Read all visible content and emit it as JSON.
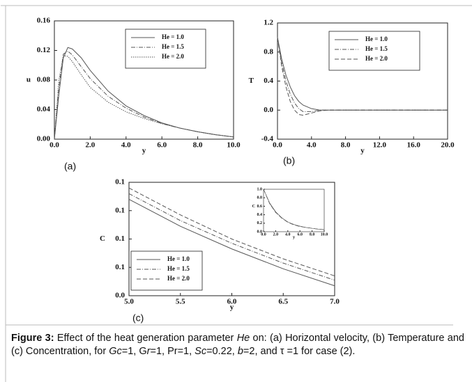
{
  "chart_data": [
    {
      "type": "line",
      "panel_label": "(a)",
      "xlabel": "y",
      "ylabel": "u",
      "x": [
        0,
        0.25,
        0.5,
        0.75,
        1,
        1.5,
        2,
        3,
        4,
        5,
        6,
        7,
        8,
        9,
        10
      ],
      "series": [
        {
          "name": "He = 1.0",
          "color": "#555",
          "dash": "solid",
          "values": [
            0,
            0.06,
            0.11,
            0.124,
            0.122,
            0.11,
            0.093,
            0.065,
            0.045,
            0.032,
            0.022,
            0.015,
            0.01,
            0.006,
            0.003
          ]
        },
        {
          "name": "He = 1.5",
          "color": "#555",
          "dash": "dashdot",
          "values": [
            0,
            0.07,
            0.115,
            0.119,
            0.114,
            0.098,
            0.082,
            0.058,
            0.042,
            0.03,
            0.021,
            0.015,
            0.01,
            0.006,
            0.003
          ]
        },
        {
          "name": "He = 2.0",
          "color": "#555",
          "dash": "dotted",
          "values": [
            0,
            0.08,
            0.113,
            0.112,
            0.105,
            0.087,
            0.07,
            0.05,
            0.037,
            0.028,
            0.021,
            0.015,
            0.01,
            0.006,
            0.003
          ]
        }
      ],
      "xlim": [
        0,
        10
      ],
      "ylim": [
        0,
        0.16
      ],
      "xticks": [
        {
          "value": 0,
          "label": "0.0"
        },
        {
          "value": 2,
          "label": "2.0"
        },
        {
          "value": 4,
          "label": "4.0"
        },
        {
          "value": 6,
          "label": "6.0"
        },
        {
          "value": 8,
          "label": "8.0"
        },
        {
          "value": 10,
          "label": "10.0"
        }
      ],
      "yticks": [
        {
          "value": 0,
          "label": "0.00"
        },
        0.04,
        0.08,
        0.12,
        0.16
      ],
      "legend": "upper right"
    },
    {
      "type": "line",
      "panel_label": "(b)",
      "xlabel": "y",
      "ylabel": "T",
      "x": [
        0,
        0.5,
        1,
        1.5,
        2,
        2.5,
        3,
        4,
        5,
        6,
        8,
        12,
        16,
        20
      ],
      "series": [
        {
          "name": "He = 1.0",
          "color": "#555",
          "dash": "solid",
          "values": [
            1,
            0.7,
            0.48,
            0.32,
            0.2,
            0.12,
            0.07,
            0.02,
            0,
            0,
            0,
            0,
            0,
            0
          ]
        },
        {
          "name": "He = 1.5",
          "color": "#555",
          "dash": "dashdot",
          "values": [
            1,
            0.65,
            0.4,
            0.22,
            0.1,
            0.02,
            -0.02,
            -0.02,
            0,
            0,
            0,
            0,
            0,
            0
          ]
        },
        {
          "name": "He = 2.0",
          "color": "#555",
          "dash": "dashed",
          "values": [
            1,
            0.6,
            0.32,
            0.12,
            0,
            -0.06,
            -0.07,
            -0.04,
            -0.01,
            0,
            0,
            0,
            0,
            0
          ]
        }
      ],
      "xlim": [
        0,
        20
      ],
      "ylim": [
        -0.4,
        1.2
      ],
      "xticks": [
        {
          "value": 0,
          "label": "0.0"
        },
        {
          "value": 4,
          "label": "4.0"
        },
        {
          "value": 8,
          "label": "8.0"
        },
        {
          "value": 12,
          "label": "12.0"
        },
        {
          "value": 16,
          "label": "16.0"
        },
        {
          "value": 20,
          "label": "20.0"
        }
      ],
      "yticks": [
        -0.4,
        {
          "value": 0,
          "label": "0.0"
        },
        0.4,
        0.8,
        1.2
      ],
      "legend": "upper right"
    },
    {
      "type": "line",
      "panel_label": "(c)",
      "xlabel": "y",
      "ylabel": "C",
      "x": [
        5,
        5.5,
        6,
        6.5,
        7
      ],
      "series": [
        {
          "name": "He = 1.0",
          "color": "#555",
          "dash": "solid",
          "values": [
            0.108,
            0.089,
            0.073,
            0.059,
            0.047
          ]
        },
        {
          "name": "He = 1.5",
          "color": "#555",
          "dash": "dashdot",
          "values": [
            0.112,
            0.093,
            0.077,
            0.063,
            0.051
          ]
        },
        {
          "name": "He = 2.0",
          "color": "#555",
          "dash": "dashed",
          "values": [
            0.116,
            0.097,
            0.08,
            0.066,
            0.054
          ]
        }
      ],
      "xlim": [
        5,
        7
      ],
      "ylim": [
        0.04,
        0.12
      ],
      "xticks": [
        {
          "value": 5,
          "label": "5.0"
        },
        5.5,
        {
          "value": 6,
          "label": "6.0"
        },
        6.5,
        {
          "value": 7,
          "label": "7.0"
        }
      ],
      "yticks": [
        {
          "value": 0.04,
          "label": "0.0"
        },
        {
          "value": 0.06,
          "label": "0.1"
        },
        {
          "value": 0.08,
          "label": "0.1"
        },
        {
          "value": 0.1,
          "label": "0.1"
        },
        {
          "value": 0.12,
          "label": "0.1"
        }
      ],
      "legend": "lower left"
    },
    {
      "type": "line",
      "xlabel": "y",
      "ylabel": "C",
      "x": [
        0,
        1,
        2,
        3,
        4,
        5,
        6,
        7,
        8,
        9,
        10
      ],
      "series": [
        {
          "color": "#555",
          "dash": "solid",
          "values": [
            1,
            0.68,
            0.47,
            0.33,
            0.23,
            0.17,
            0.13,
            0.1,
            0.08,
            0.06,
            0.05
          ]
        },
        {
          "color": "#555",
          "dash": "dashdot",
          "values": [
            1,
            0.67,
            0.46,
            0.32,
            0.23,
            0.17,
            0.13,
            0.1,
            0.08,
            0.06,
            0.05
          ]
        },
        {
          "color": "#555",
          "dash": "dashed",
          "values": [
            1,
            0.66,
            0.45,
            0.32,
            0.22,
            0.16,
            0.12,
            0.1,
            0.08,
            0.06,
            0.05
          ]
        }
      ],
      "xlim": [
        0,
        10
      ],
      "ylim": [
        0,
        1
      ],
      "xticks": [
        {
          "value": 0,
          "label": "0.0"
        },
        {
          "value": 2,
          "label": "2.0"
        },
        {
          "value": 4,
          "label": "4.0"
        },
        {
          "value": 6,
          "label": "6.0"
        },
        {
          "value": 8,
          "label": "8.0"
        },
        {
          "value": 10,
          "label": "10.0"
        }
      ],
      "yticks": [
        {
          "value": 0,
          "label": "0.0"
        },
        0.2,
        0.4,
        0.6,
        0.8,
        {
          "value": 1,
          "label": "1.0"
        }
      ]
    }
  ],
  "caption": {
    "label": "Figure 3:",
    "parts": [
      " Effect of the heat generation parameter ",
      "He",
      " on: (a) Horizontal velocity, (b) Temperature and (c) Concentration, for ",
      "Gc",
      "=1, G",
      "r",
      "=1, Pr=1, ",
      "Sc",
      "=0.22, ",
      "b",
      "=2, and τ =1 for case (2)."
    ]
  }
}
